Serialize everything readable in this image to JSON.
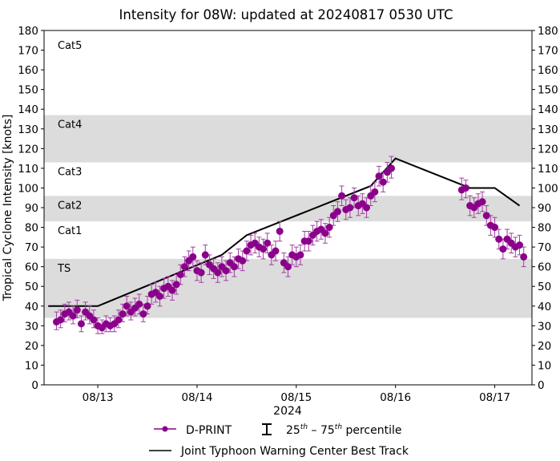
{
  "chart_data": {
    "type": "line",
    "title": "Intensity for 08W: updated at 20240817 0530 UTC",
    "ylabel": "Tropical Cyclone Intensity [knots]",
    "xlabel": "2024",
    "ylim": [
      0,
      180
    ],
    "xlim": [
      "08/12 11:00",
      "08/17 09:00"
    ],
    "yticks": [
      0,
      10,
      20,
      30,
      40,
      50,
      60,
      70,
      80,
      90,
      100,
      110,
      120,
      130,
      140,
      150,
      160,
      170,
      180
    ],
    "xticks": [
      {
        "t": "08/13 00:00",
        "label": "08/13"
      },
      {
        "t": "08/14 00:00",
        "label": "08/14"
      },
      {
        "t": "08/15 00:00",
        "label": "08/15"
      },
      {
        "t": "08/16 00:00",
        "label": "08/16"
      },
      {
        "t": "08/17 00:00",
        "label": "08/17"
      }
    ],
    "bands": [
      {
        "label": "TS",
        "range": [
          34,
          64
        ],
        "shaded": true
      },
      {
        "label": "Cat1",
        "range": [
          64,
          83
        ],
        "shaded": false
      },
      {
        "label": "Cat2",
        "range": [
          83,
          96
        ],
        "shaded": true
      },
      {
        "label": "Cat3",
        "range": [
          96,
          113
        ],
        "shaded": false
      },
      {
        "label": "Cat4",
        "range": [
          113,
          137
        ],
        "shaded": true
      },
      {
        "label": "Cat5",
        "range": [
          137,
          180
        ],
        "shaded": false
      }
    ],
    "band_color": "#dcdcdc",
    "legend": {
      "placement": "bottom",
      "dprint": "D-PRINT",
      "pct_a": "25",
      "pct_sup": "th",
      "pct_dash": " – ",
      "pct_b": "75",
      "pct_word": " percentile",
      "best_track": "Joint Typhoon Warning Center Best Track"
    },
    "series": [
      {
        "name": "Joint Typhoon Warning Center Best Track",
        "color": "#000000",
        "points": [
          [
            "08/12 12:00",
            40
          ],
          [
            "08/13 00:00",
            40
          ],
          [
            "08/14 06:00",
            66
          ],
          [
            "08/14 12:00",
            76
          ],
          [
            "08/15 18:00",
            101
          ],
          [
            "08/16 00:00",
            115
          ],
          [
            "08/16 18:00",
            100
          ],
          [
            "08/17 00:00",
            100
          ],
          [
            "08/17 06:00",
            91
          ]
        ]
      },
      {
        "name": "D-PRINT",
        "color": "#8b008b",
        "errorbar": "25th–75th percentile",
        "points": [
          [
            "08/12 14:00",
            32,
            28,
            37
          ],
          [
            "08/12 15:00",
            33,
            29,
            38
          ],
          [
            "08/12 16:00",
            36,
            32,
            41
          ],
          [
            "08/12 17:00",
            37,
            33,
            42
          ],
          [
            "08/12 18:00",
            35,
            31,
            40
          ],
          [
            "08/12 19:00",
            38,
            34,
            43
          ],
          [
            "08/12 20:00",
            31,
            27,
            35
          ],
          [
            "08/12 21:00",
            37,
            33,
            42
          ],
          [
            "08/12 22:00",
            35,
            31,
            40
          ],
          [
            "08/12 23:00",
            33,
            29,
            38
          ],
          [
            "08/13 00:00",
            30,
            26,
            34
          ],
          [
            "08/13 01:00",
            29,
            26,
            33
          ],
          [
            "08/13 02:00",
            31,
            27,
            35
          ],
          [
            "08/13 03:00",
            30,
            27,
            34
          ],
          [
            "08/13 04:00",
            31,
            27,
            35
          ],
          [
            "08/13 05:00",
            33,
            29,
            38
          ],
          [
            "08/13 06:00",
            36,
            32,
            41
          ],
          [
            "08/13 07:00",
            40,
            35,
            45
          ],
          [
            "08/13 08:00",
            37,
            33,
            42
          ],
          [
            "08/13 09:00",
            39,
            35,
            44
          ],
          [
            "08/13 10:00",
            41,
            36,
            46
          ],
          [
            "08/13 11:00",
            36,
            32,
            41
          ],
          [
            "08/13 12:00",
            40,
            36,
            45
          ],
          [
            "08/13 13:00",
            46,
            41,
            51
          ],
          [
            "08/13 14:00",
            47,
            42,
            52
          ],
          [
            "08/13 15:00",
            45,
            40,
            50
          ],
          [
            "08/13 16:00",
            49,
            44,
            54
          ],
          [
            "08/13 17:00",
            50,
            45,
            55
          ],
          [
            "08/13 18:00",
            48,
            43,
            53
          ],
          [
            "08/13 19:00",
            51,
            46,
            56
          ],
          [
            "08/13 20:00",
            56,
            51,
            61
          ],
          [
            "08/13 21:00",
            60,
            55,
            65
          ],
          [
            "08/13 22:00",
            63,
            58,
            68
          ],
          [
            "08/13 23:00",
            65,
            60,
            70
          ],
          [
            "08/14 00:00",
            58,
            53,
            63
          ],
          [
            "08/14 01:00",
            57,
            52,
            62
          ],
          [
            "08/14 02:00",
            66,
            61,
            71
          ],
          [
            "08/14 03:00",
            61,
            56,
            66
          ],
          [
            "08/14 04:00",
            59,
            54,
            64
          ],
          [
            "08/14 05:00",
            57,
            52,
            62
          ],
          [
            "08/14 06:00",
            60,
            55,
            65
          ],
          [
            "08/14 07:00",
            58,
            53,
            63
          ],
          [
            "08/14 08:00",
            62,
            57,
            67
          ],
          [
            "08/14 09:00",
            60,
            55,
            65
          ],
          [
            "08/14 10:00",
            64,
            59,
            69
          ],
          [
            "08/14 11:00",
            63,
            58,
            68
          ],
          [
            "08/14 12:00",
            68,
            63,
            73
          ],
          [
            "08/14 13:00",
            71,
            66,
            76
          ],
          [
            "08/14 14:00",
            72,
            67,
            77
          ],
          [
            "08/14 15:00",
            70,
            65,
            75
          ],
          [
            "08/14 16:00",
            69,
            64,
            74
          ],
          [
            "08/14 17:00",
            72,
            67,
            77
          ],
          [
            "08/14 18:00",
            66,
            61,
            71
          ],
          [
            "08/14 19:00",
            68,
            63,
            73
          ],
          [
            "08/14 20:00",
            78,
            73,
            83
          ],
          [
            "08/14 21:00",
            62,
            57,
            67
          ],
          [
            "08/14 22:00",
            60,
            55,
            65
          ],
          [
            "08/14 23:00",
            66,
            61,
            71
          ],
          [
            "08/15 00:00",
            65,
            60,
            70
          ],
          [
            "08/15 01:00",
            66,
            61,
            71
          ],
          [
            "08/15 02:00",
            73,
            68,
            78
          ],
          [
            "08/15 03:00",
            73,
            68,
            78
          ],
          [
            "08/15 04:00",
            76,
            71,
            81
          ],
          [
            "08/15 05:00",
            78,
            73,
            83
          ],
          [
            "08/15 06:00",
            79,
            74,
            84
          ],
          [
            "08/15 07:00",
            77,
            72,
            82
          ],
          [
            "08/15 08:00",
            80,
            75,
            85
          ],
          [
            "08/15 09:00",
            86,
            81,
            91
          ],
          [
            "08/15 10:00",
            88,
            83,
            93
          ],
          [
            "08/15 11:00",
            96,
            91,
            101
          ],
          [
            "08/15 12:00",
            89,
            84,
            94
          ],
          [
            "08/15 13:00",
            90,
            85,
            95
          ],
          [
            "08/15 14:00",
            95,
            90,
            100
          ],
          [
            "08/15 15:00",
            91,
            86,
            96
          ],
          [
            "08/15 16:00",
            92,
            87,
            97
          ],
          [
            "08/15 17:00",
            90,
            85,
            95
          ],
          [
            "08/15 18:00",
            96,
            91,
            101
          ],
          [
            "08/15 19:00",
            98,
            93,
            103
          ],
          [
            "08/15 20:00",
            106,
            101,
            111
          ],
          [
            "08/15 21:00",
            103,
            98,
            108
          ],
          [
            "08/15 22:00",
            108,
            103,
            113
          ],
          [
            "08/15 23:00",
            110,
            105,
            116
          ],
          [
            "08/16 16:00",
            99,
            94,
            105
          ],
          [
            "08/16 17:00",
            100,
            95,
            104
          ],
          [
            "08/16 18:00",
            91,
            86,
            96
          ],
          [
            "08/16 19:00",
            90,
            85,
            95
          ],
          [
            "08/16 20:00",
            92,
            87,
            97
          ],
          [
            "08/16 21:00",
            93,
            88,
            98
          ],
          [
            "08/16 22:00",
            86,
            81,
            91
          ],
          [
            "08/16 23:00",
            81,
            76,
            86
          ],
          [
            "08/17 00:00",
            80,
            75,
            85
          ],
          [
            "08/17 01:00",
            74,
            69,
            79
          ],
          [
            "08/17 02:00",
            69,
            64,
            74
          ],
          [
            "08/17 03:00",
            74,
            69,
            79
          ],
          [
            "08/17 04:00",
            72,
            67,
            77
          ],
          [
            "08/17 05:00",
            70,
            65,
            75
          ],
          [
            "08/17 06:00",
            71,
            66,
            76
          ],
          [
            "08/17 07:00",
            65,
            60,
            70
          ]
        ]
      }
    ]
  }
}
